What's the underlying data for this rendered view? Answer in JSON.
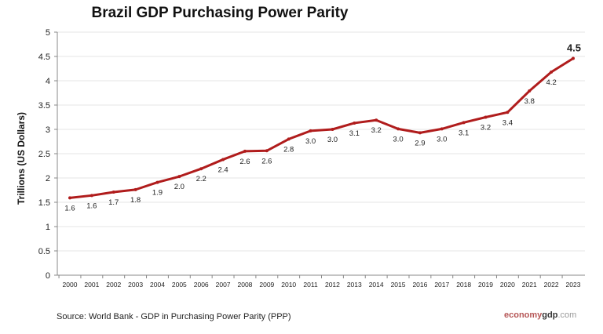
{
  "chart_data": {
    "type": "line",
    "title": "Brazil GDP Purchasing Power Parity",
    "xlabel": "",
    "ylabel": "Trillions (US Dollars)",
    "ylim": [
      0,
      5
    ],
    "yticks": [
      "0",
      "0.5",
      "1",
      "1.5",
      "2",
      "2.5",
      "3",
      "3.5",
      "4",
      "4.5",
      "5"
    ],
    "grid": true,
    "line_color": "#b01c1c",
    "categories": [
      "2000",
      "2001",
      "2002",
      "2003",
      "2004",
      "2005",
      "2006",
      "2007",
      "2008",
      "2009",
      "2010",
      "2011",
      "2012",
      "2013",
      "2014",
      "2015",
      "2016",
      "2017",
      "2018",
      "2019",
      "2020",
      "2021",
      "2022",
      "2023"
    ],
    "series": [
      {
        "values": [
          1.59,
          1.64,
          1.71,
          1.76,
          1.91,
          2.03,
          2.19,
          2.38,
          2.55,
          2.56,
          2.8,
          2.97,
          3.0,
          3.13,
          3.19,
          3.01,
          2.93,
          3.01,
          3.14,
          3.25,
          3.35,
          3.79,
          4.18,
          4.46
        ],
        "labels": [
          "1.6",
          "1.6",
          "1.7",
          "1.8",
          "1.9",
          "2.0",
          "2.2",
          "2.4",
          "2.6",
          "2.6",
          "2.8",
          "3.0",
          "3.0",
          "3.1",
          "3.2",
          "3.0",
          "2.9",
          "3.0",
          "3.1",
          "3.2",
          "3.4",
          "3.8",
          "4.2",
          "4.5"
        ]
      }
    ]
  },
  "source": "Source:  World Bank -  GDP  in Purchasing Power Parity (PPP)",
  "logo": {
    "part1": "economy",
    "part2": "gdp",
    "part3": ".com"
  }
}
